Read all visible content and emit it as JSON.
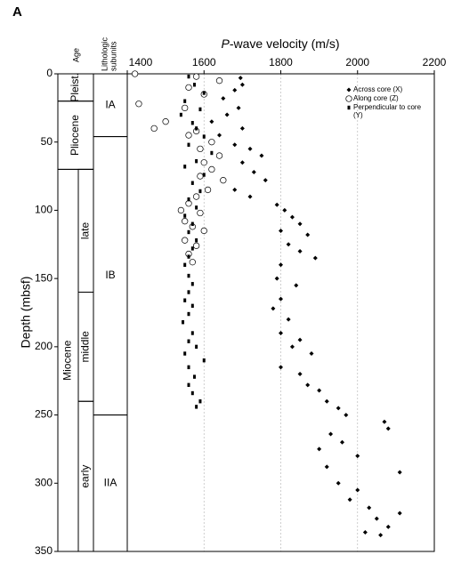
{
  "panel_label": "A",
  "chart_data": {
    "type": "scatter",
    "x_label": {
      "italic": "P",
      "text": "-wave velocity (m/s)"
    },
    "y_label": "Depth (mbsf)",
    "xlim": [
      1400,
      2200
    ],
    "xticks": [
      1400,
      1600,
      1800,
      2000,
      2200
    ],
    "ylim": [
      0,
      350
    ],
    "yticks": [
      0,
      50,
      100,
      150,
      200,
      250,
      300,
      350
    ],
    "grid": true,
    "legend": "upper right",
    "series": [
      {
        "name": "Across core (X)",
        "marker": "diamond",
        "color": "#000",
        "x": [
          1695,
          1700,
          1680,
          1650,
          1690,
          1660,
          1620,
          1700,
          1640,
          1680,
          1720,
          1750,
          1700,
          1730,
          1760,
          1680,
          1720,
          1790,
          1810,
          1830,
          1850,
          1800,
          1870,
          1820,
          1850,
          1890,
          1800,
          1790,
          1840,
          1800,
          1780,
          1820,
          1800,
          1850,
          1830,
          1880,
          1800,
          1850,
          1870,
          1900,
          1920,
          1950,
          1970,
          2070,
          2080,
          1930,
          1960,
          1900,
          2000,
          1920,
          2110,
          1950,
          2000,
          1980,
          2030,
          2110,
          2050,
          2080,
          2020,
          2060
        ],
        "values": [
          3,
          8,
          12,
          18,
          25,
          30,
          35,
          40,
          45,
          52,
          55,
          60,
          65,
          72,
          78,
          85,
          90,
          96,
          100,
          105,
          110,
          115,
          118,
          125,
          130,
          135,
          140,
          150,
          155,
          165,
          172,
          180,
          190,
          195,
          200,
          205,
          215,
          220,
          228,
          232,
          240,
          245,
          250,
          255,
          260,
          264,
          270,
          275,
          280,
          288,
          292,
          300,
          305,
          312,
          318,
          322,
          326,
          332,
          336,
          338
        ]
      },
      {
        "name": "Along core (Z)",
        "marker": "circle",
        "color": "#000",
        "x": [
          1420,
          1580,
          1640,
          1560,
          1600,
          1430,
          1550,
          1500,
          1470,
          1580,
          1560,
          1620,
          1590,
          1640,
          1600,
          1620,
          1590,
          1650,
          1610,
          1580,
          1560,
          1540,
          1590,
          1550,
          1570,
          1600,
          1550,
          1580,
          1560,
          1570
        ],
        "values": [
          0,
          2,
          5,
          10,
          15,
          22,
          25,
          35,
          40,
          42,
          45,
          50,
          55,
          60,
          65,
          70,
          75,
          78,
          85,
          90,
          95,
          100,
          102,
          108,
          112,
          115,
          122,
          126,
          132,
          138
        ]
      },
      {
        "name": "Perpendicular to core (Y)",
        "marker": "square",
        "color": "#000",
        "x": [
          1560,
          1575,
          1600,
          1550,
          1590,
          1540,
          1570,
          1580,
          1600,
          1560,
          1620,
          1580,
          1550,
          1600,
          1570,
          1590,
          1560,
          1580,
          1550,
          1570,
          1560,
          1580,
          1570,
          1560,
          1550,
          1560,
          1570,
          1560,
          1550,
          1570,
          1560,
          1545,
          1570,
          1560,
          1580,
          1550,
          1600,
          1560,
          1575,
          1560,
          1570,
          1590,
          1580
        ],
        "values": [
          2,
          8,
          14,
          20,
          26,
          30,
          36,
          40,
          46,
          52,
          58,
          64,
          68,
          74,
          80,
          86,
          92,
          98,
          104,
          110,
          116,
          122,
          128,
          134,
          140,
          148,
          154,
          160,
          166,
          170,
          176,
          182,
          190,
          196,
          200,
          205,
          210,
          215,
          222,
          228,
          234,
          240,
          244
        ]
      }
    ]
  },
  "stratigraphy": {
    "headers": {
      "age": "Age",
      "subunits": [
        "Lithologic",
        "subunits"
      ]
    },
    "age": [
      {
        "label": "Pleist.",
        "top": 0,
        "bottom": 20
      },
      {
        "label": "Pliocene",
        "top": 20,
        "bottom": 70
      },
      {
        "label": "Miocene",
        "top": 70,
        "bottom": 350
      }
    ],
    "miocene_sub": [
      {
        "label": "late",
        "top": 70,
        "bottom": 160
      },
      {
        "label": "middle",
        "top": 160,
        "bottom": 240
      },
      {
        "label": "early",
        "top": 240,
        "bottom": 350
      }
    ],
    "subunits": [
      {
        "label": "IA",
        "top": 0,
        "bottom": 46
      },
      {
        "label": "IB",
        "top": 46,
        "bottom": 250
      },
      {
        "label": "IIA",
        "top": 250,
        "bottom": 350
      }
    ]
  }
}
